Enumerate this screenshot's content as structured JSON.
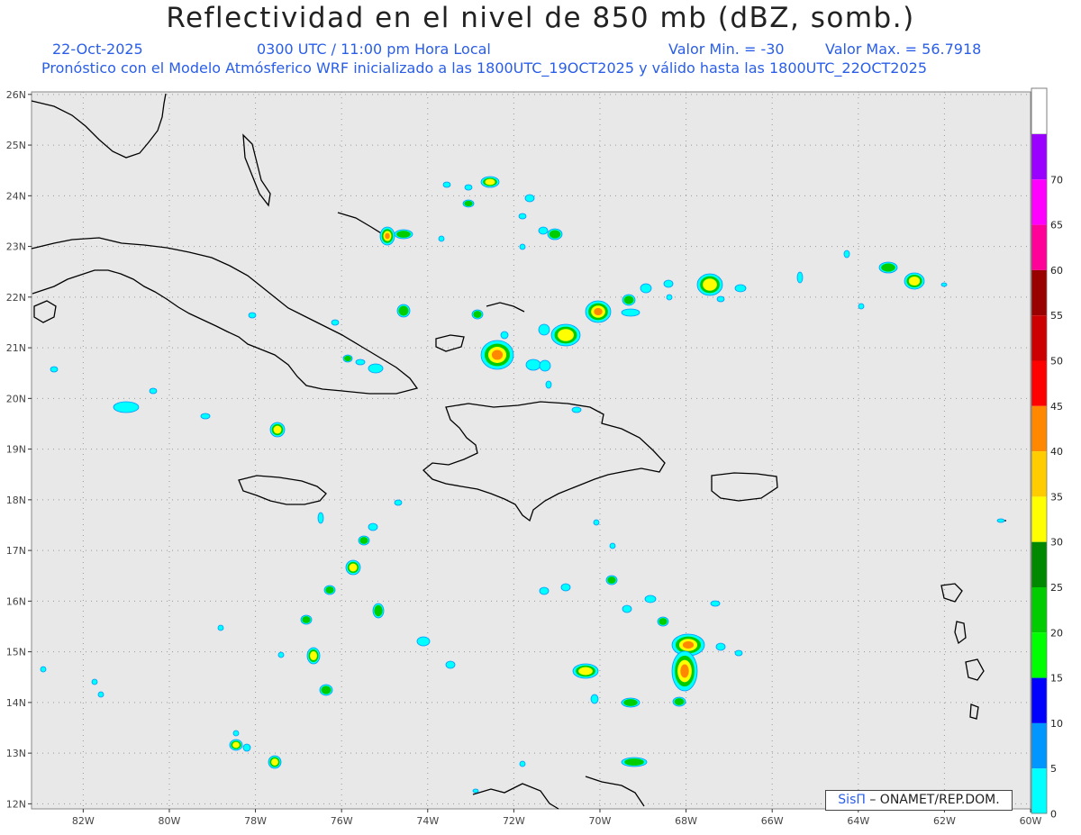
{
  "header": {
    "title": "Reflectividad en el nivel de 850 mb (dBZ, somb.)",
    "date": "22-Oct-2025",
    "time": "0300 UTC / 11:00 pm Hora Local",
    "valmin": "Valor Min. = -30",
    "valmax": "Valor Max. = 56.7918",
    "model_line": "Pronóstico con el Modelo Atmósferico WRF inicializado a las 1800UTC_19OCT2025 y válido hasta las  1800UTC_22OCT2025"
  },
  "map": {
    "lon_labels": [
      "82W",
      "80W",
      "78W",
      "76W",
      "74W",
      "72W",
      "70W",
      "68W",
      "66W",
      "64W",
      "62W",
      "60W"
    ],
    "lat_labels": [
      "26N",
      "25N",
      "24N",
      "23N",
      "22N",
      "21N",
      "20N",
      "19N",
      "18N",
      "17N",
      "16N",
      "15N",
      "14N",
      "13N",
      "12N"
    ],
    "extent": {
      "lon_min": -83.2,
      "lon_max": -60.0,
      "lat_min": 11.9,
      "lat_max": 26.05
    },
    "background": "#e8e8e8",
    "grid": "dotted"
  },
  "colorbar": {
    "labels": [
      "0",
      "5",
      "10",
      "15",
      "20",
      "25",
      "30",
      "35",
      "40",
      "45",
      "50",
      "55",
      "60",
      "65",
      "70"
    ],
    "colors": [
      "#00ffff",
      "#0096ff",
      "#0000ff",
      "#00ff00",
      "#00cc00",
      "#008800",
      "#ffff00",
      "#ffcc00",
      "#ff8800",
      "#ff0000",
      "#cc0000",
      "#990000",
      "#ff0099",
      "#ff00ff",
      "#9900ff"
    ]
  },
  "credit": {
    "sis": "SisΠ",
    "text": "– ONAMET/REP.DOM."
  }
}
